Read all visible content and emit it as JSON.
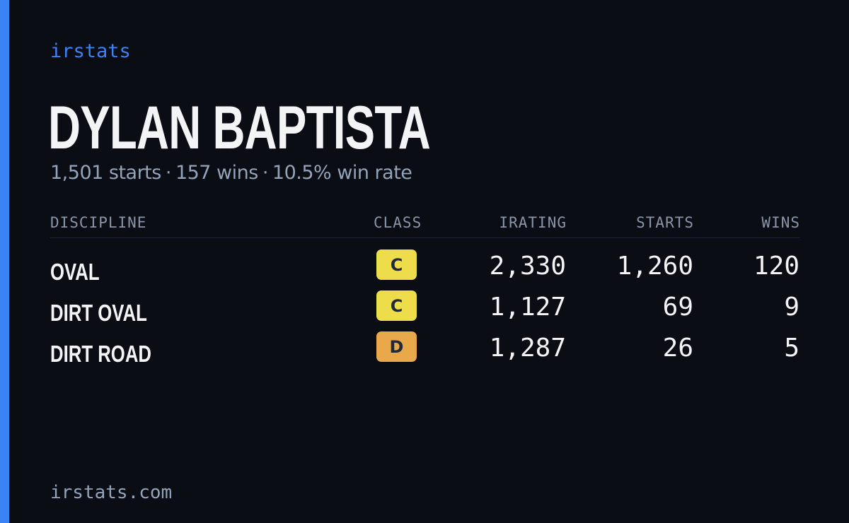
{
  "brand": "irstats",
  "driver": {
    "name": "DYLAN BAPTISTA",
    "starts": "1,501 starts",
    "wins": "157 wins",
    "win_rate": "10.5% win rate",
    "separator": "·"
  },
  "table": {
    "headers": {
      "discipline": "DISCIPLINE",
      "class": "CLASS",
      "irating": "IRATING",
      "starts": "STARTS",
      "wins": "WINS"
    },
    "rows": [
      {
        "discipline": "OVAL",
        "class": "C",
        "class_color": "#eedd4a",
        "irating": "2,330",
        "starts": "1,260",
        "wins": "120"
      },
      {
        "discipline": "DIRT OVAL",
        "class": "C",
        "class_color": "#eedd4a",
        "irating": "1,127",
        "starts": "69",
        "wins": "9"
      },
      {
        "discipline": "DIRT ROAD",
        "class": "D",
        "class_color": "#e9a94b",
        "irating": "1,287",
        "starts": "26",
        "wins": "5"
      }
    ]
  },
  "footer": "irstats.com",
  "colors": {
    "background": "#0a0d14",
    "accent": "#3b82f6",
    "text_primary": "#f3f4f6",
    "text_muted": "#94a3b8"
  }
}
